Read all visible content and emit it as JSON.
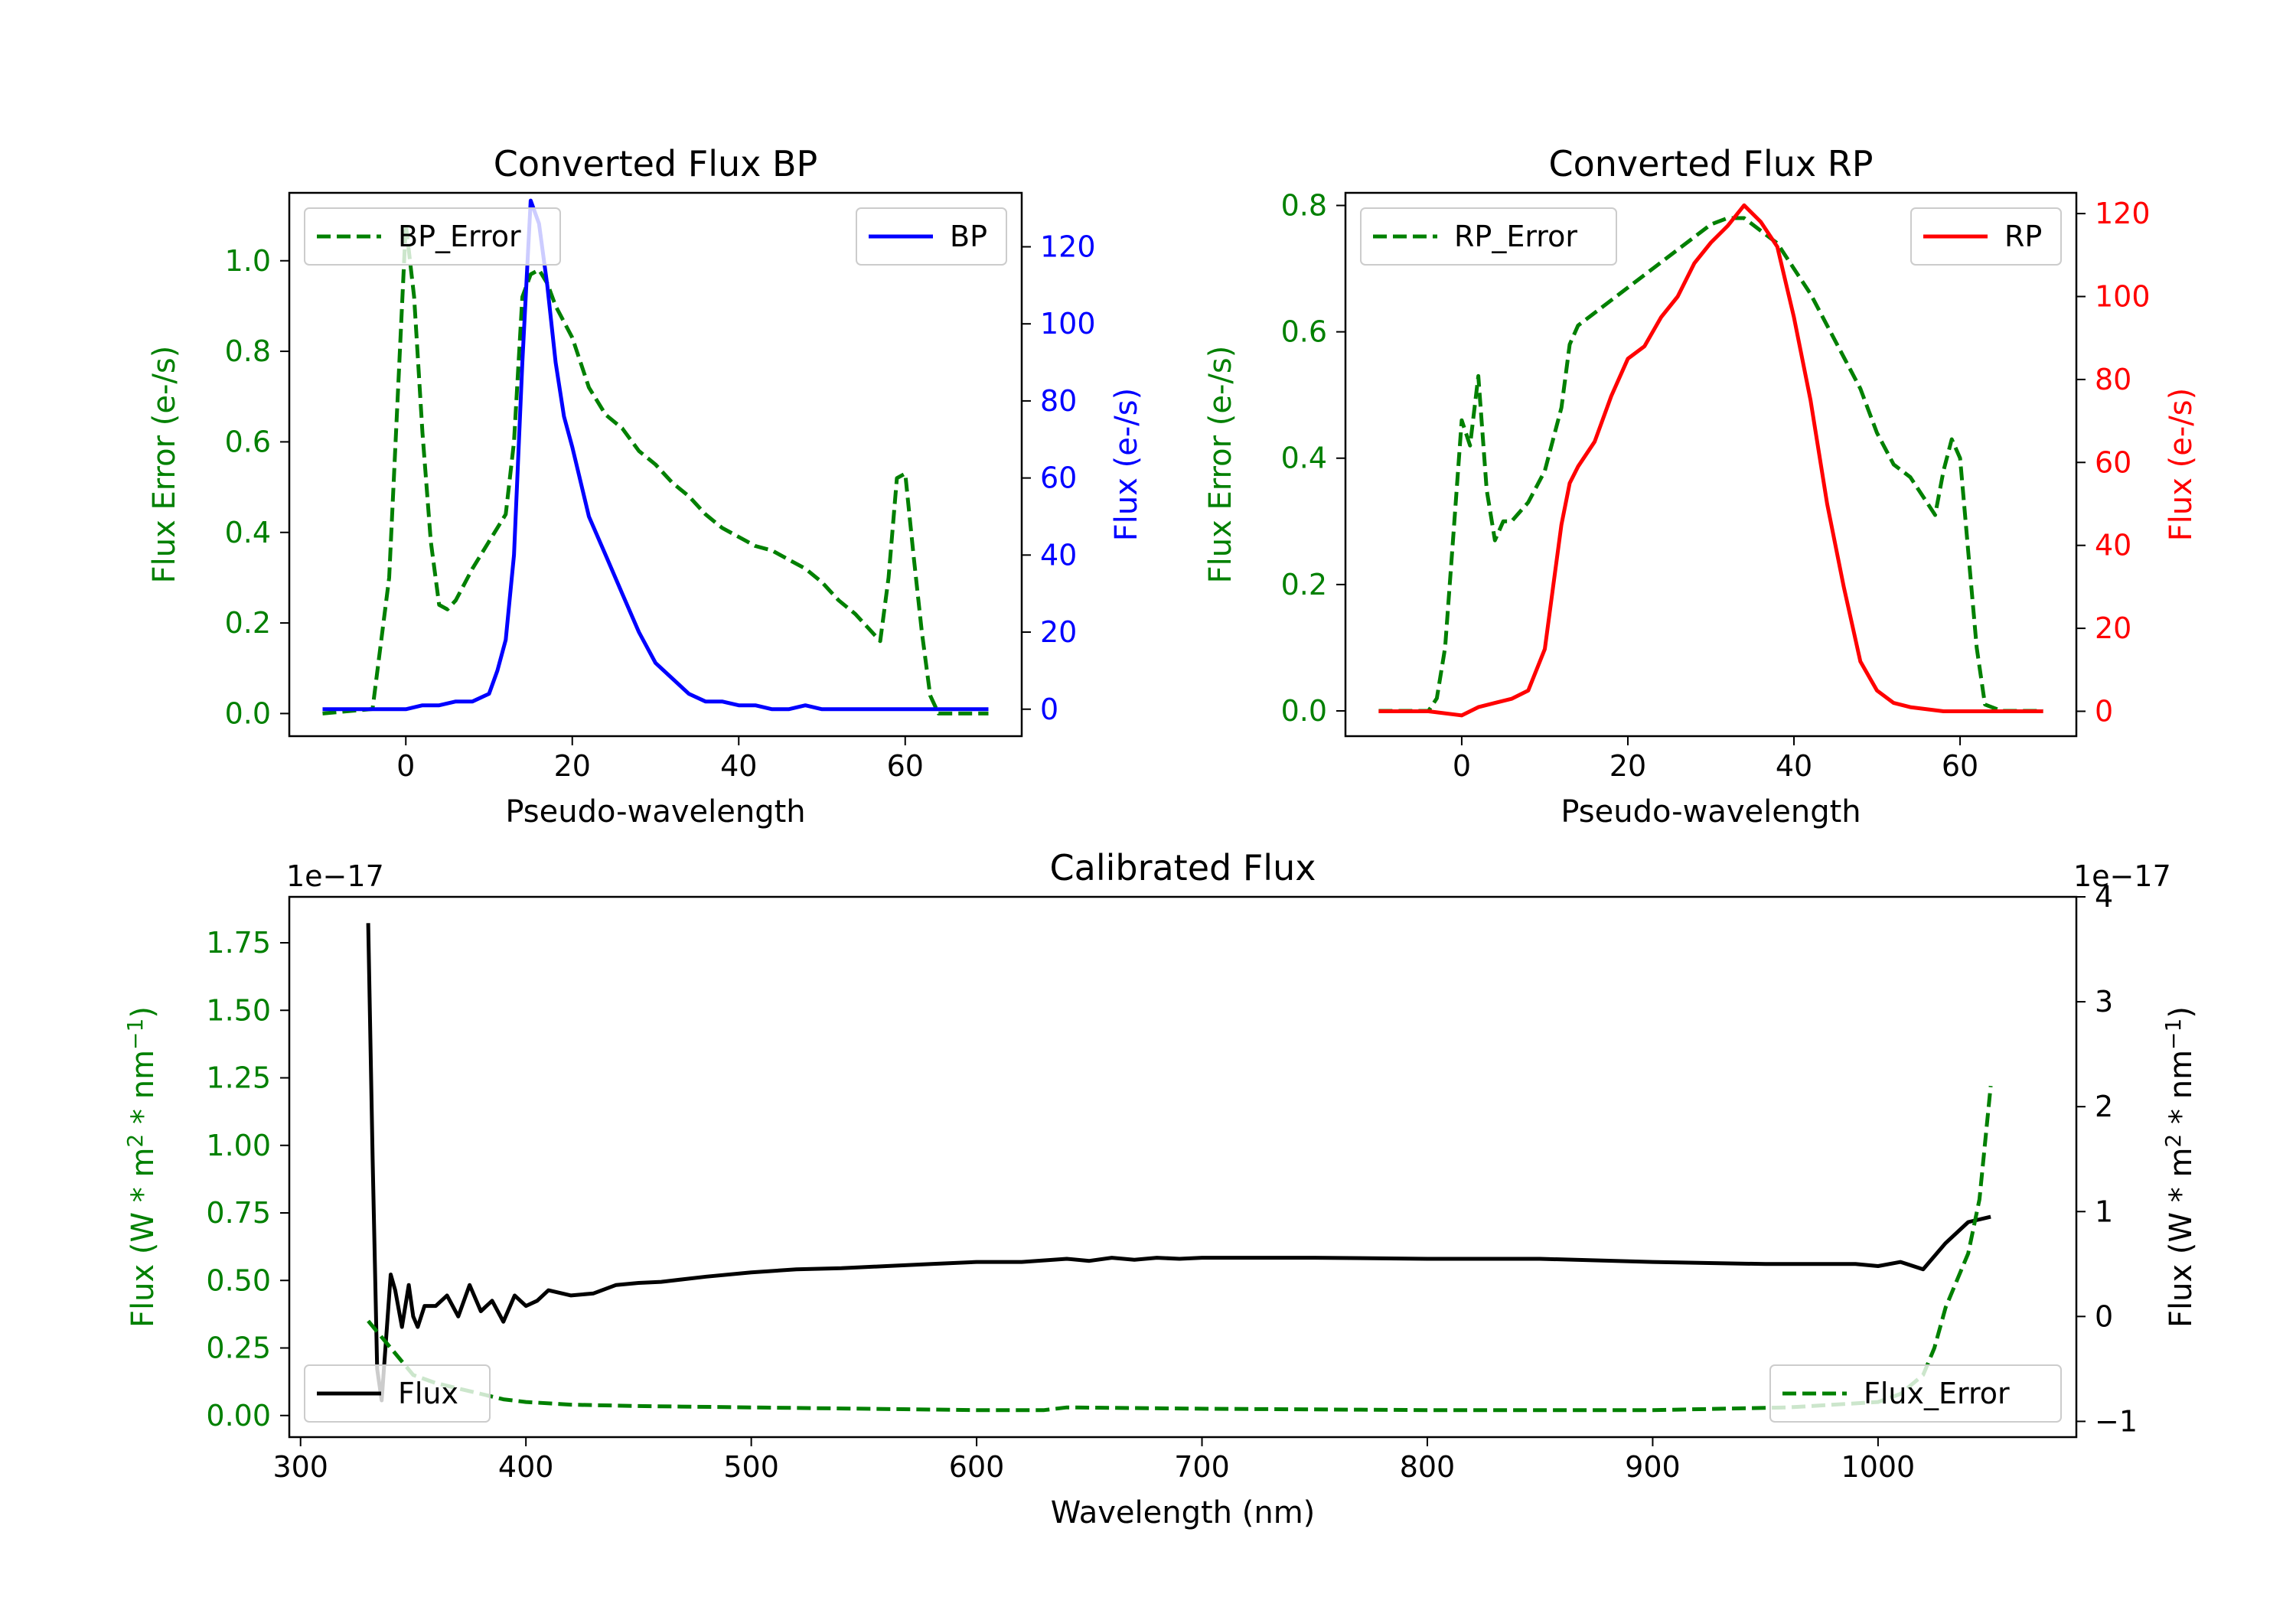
{
  "chart_data": [
    {
      "type": "line",
      "id": "bp",
      "title": "Converted Flux BP",
      "xlabel": "Pseudo-wavelength",
      "ylabel_left": "Flux Error (e-/s)",
      "ylabel_right": "Flux (e-/s)",
      "xlim": [
        -14,
        74
      ],
      "ylim_left": [
        -0.05,
        1.15
      ],
      "ylim_right": [
        -7,
        134
      ],
      "xticks": [
        0,
        20,
        40,
        60
      ],
      "yticks_left": [
        0.0,
        0.2,
        0.4,
        0.6,
        0.8,
        1.0
      ],
      "yticks_right": [
        0,
        20,
        40,
        60,
        80,
        100,
        120
      ],
      "legend": [
        {
          "label": "BP_Error",
          "position": "upper-left"
        },
        {
          "label": "BP",
          "position": "upper-right"
        }
      ],
      "series": [
        {
          "name": "BP_Error",
          "axis": "left",
          "color": "#008000",
          "dash": true,
          "x": [
            -10,
            -4,
            -2,
            0,
            1,
            2,
            3,
            4,
            5,
            6,
            8,
            10,
            12,
            13,
            14,
            15,
            16,
            17,
            18,
            20,
            22,
            24,
            26,
            28,
            30,
            32,
            34,
            36,
            38,
            40,
            42,
            44,
            46,
            48,
            50,
            52,
            54,
            56,
            57,
            58,
            59,
            60,
            61,
            62,
            63,
            64,
            66,
            70
          ],
          "y": [
            0.0,
            0.01,
            0.3,
            1.08,
            0.92,
            0.62,
            0.38,
            0.24,
            0.23,
            0.25,
            0.32,
            0.38,
            0.44,
            0.6,
            0.92,
            0.97,
            0.98,
            0.95,
            0.9,
            0.83,
            0.72,
            0.66,
            0.63,
            0.58,
            0.55,
            0.51,
            0.48,
            0.44,
            0.41,
            0.39,
            0.37,
            0.36,
            0.34,
            0.32,
            0.29,
            0.25,
            0.22,
            0.18,
            0.16,
            0.3,
            0.52,
            0.53,
            0.35,
            0.18,
            0.04,
            0.0,
            0.0,
            0.0
          ]
        },
        {
          "name": "BP",
          "axis": "right",
          "color": "#0000ff",
          "dash": false,
          "x": [
            -10,
            -4,
            0,
            2,
            4,
            6,
            8,
            10,
            11,
            12,
            13,
            14,
            15,
            16,
            17,
            18,
            19,
            20,
            22,
            24,
            26,
            28,
            30,
            32,
            34,
            36,
            38,
            40,
            42,
            44,
            46,
            48,
            50,
            52,
            54,
            58,
            62,
            66,
            70
          ],
          "y": [
            0,
            0,
            0,
            1,
            1,
            2,
            2,
            4,
            10,
            18,
            40,
            90,
            132,
            126,
            110,
            90,
            76,
            68,
            50,
            40,
            30,
            20,
            12,
            8,
            4,
            2,
            2,
            1,
            1,
            0,
            0,
            1,
            0,
            0,
            0,
            0,
            0,
            0,
            0
          ]
        }
      ]
    },
    {
      "type": "line",
      "id": "rp",
      "title": "Converted Flux RP",
      "xlabel": "Pseudo-wavelength",
      "ylabel_left": "Flux Error (e-/s)",
      "ylabel_right": "Flux (e-/s)",
      "xlim": [
        -14,
        74
      ],
      "ylim_left": [
        -0.04,
        0.82
      ],
      "ylim_right": [
        -6,
        125
      ],
      "xticks": [
        0,
        20,
        40,
        60
      ],
      "yticks_left": [
        0.0,
        0.2,
        0.4,
        0.6,
        0.8
      ],
      "yticks_right": [
        0,
        20,
        40,
        60,
        80,
        100,
        120
      ],
      "legend": [
        {
          "label": "RP_Error",
          "position": "upper-left"
        },
        {
          "label": "RP",
          "position": "upper-right"
        }
      ],
      "series": [
        {
          "name": "RP_Error",
          "axis": "left",
          "color": "#008000",
          "dash": true,
          "x": [
            -10,
            -4,
            -3,
            -2,
            -1,
            0,
            1,
            2,
            3,
            4,
            5,
            6,
            8,
            10,
            12,
            13,
            14,
            16,
            18,
            20,
            22,
            24,
            26,
            28,
            30,
            32,
            34,
            36,
            38,
            40,
            42,
            44,
            46,
            48,
            50,
            52,
            54,
            56,
            57,
            58,
            59,
            60,
            61,
            62,
            63,
            65,
            70
          ],
          "y": [
            0.0,
            0.0,
            0.02,
            0.1,
            0.28,
            0.46,
            0.42,
            0.53,
            0.35,
            0.27,
            0.3,
            0.3,
            0.33,
            0.38,
            0.48,
            0.58,
            0.61,
            0.63,
            0.65,
            0.67,
            0.69,
            0.71,
            0.73,
            0.75,
            0.77,
            0.78,
            0.78,
            0.76,
            0.74,
            0.7,
            0.66,
            0.61,
            0.56,
            0.51,
            0.44,
            0.39,
            0.37,
            0.33,
            0.31,
            0.38,
            0.43,
            0.4,
            0.25,
            0.1,
            0.01,
            0.0,
            0.0
          ]
        },
        {
          "name": "RP",
          "axis": "right",
          "color": "#ff0000",
          "dash": false,
          "x": [
            -10,
            -4,
            0,
            2,
            4,
            6,
            8,
            10,
            11,
            12,
            13,
            14,
            16,
            18,
            20,
            22,
            24,
            26,
            28,
            30,
            32,
            34,
            36,
            38,
            40,
            42,
            44,
            46,
            48,
            50,
            52,
            54,
            58,
            62,
            66,
            70
          ],
          "y": [
            0,
            0,
            -1,
            1,
            2,
            3,
            5,
            15,
            30,
            45,
            55,
            59,
            65,
            76,
            85,
            88,
            95,
            100,
            108,
            113,
            117,
            122,
            118,
            112,
            95,
            75,
            50,
            30,
            12,
            5,
            2,
            1,
            0,
            0,
            0,
            0
          ]
        }
      ]
    },
    {
      "type": "line",
      "id": "cal",
      "title": "Calibrated Flux",
      "xlabel": "Wavelength (nm)",
      "ylabel_left": "Flux (W * m^2 * nm^-1)",
      "ylabel_right": "Flux (W * m^2 * nm^-1)",
      "scale_left": "1e−17",
      "scale_right": "1e−17",
      "xlim": [
        295,
        1088
      ],
      "ylim_left": [
        -0.08,
        1.92
      ],
      "ylim_right": [
        -1.15,
        4.0
      ],
      "xticks": [
        300,
        400,
        500,
        600,
        700,
        800,
        900,
        1000
      ],
      "yticks_left": [
        0.0,
        0.25,
        0.5,
        0.75,
        1.0,
        1.25,
        1.5,
        1.75
      ],
      "yticks_right": [
        -1,
        0,
        1,
        2,
        3,
        4
      ],
      "legend": [
        {
          "label": "Flux",
          "position": "lower-left"
        },
        {
          "label": "Flux_Error",
          "position": "lower-right"
        }
      ],
      "series": [
        {
          "name": "Flux",
          "axis": "right",
          "color": "#000000",
          "dash": false,
          "x": [
            330,
            332,
            334,
            336,
            338,
            340,
            342,
            345,
            348,
            350,
            352,
            355,
            360,
            365,
            370,
            375,
            380,
            385,
            390,
            395,
            400,
            405,
            410,
            420,
            430,
            440,
            450,
            460,
            480,
            500,
            520,
            540,
            560,
            580,
            600,
            620,
            640,
            650,
            660,
            670,
            680,
            690,
            700,
            750,
            800,
            850,
            900,
            950,
            990,
            1000,
            1010,
            1020,
            1030,
            1040,
            1050
          ],
          "y": [
            3.75,
            1.5,
            -0.5,
            -0.8,
            -0.2,
            0.4,
            0.25,
            -0.1,
            0.3,
            0.0,
            -0.1,
            0.1,
            0.1,
            0.2,
            0.0,
            0.3,
            0.05,
            0.15,
            -0.05,
            0.2,
            0.1,
            0.15,
            0.25,
            0.2,
            0.22,
            0.3,
            0.32,
            0.33,
            0.38,
            0.42,
            0.45,
            0.46,
            0.48,
            0.5,
            0.52,
            0.52,
            0.55,
            0.53,
            0.56,
            0.54,
            0.56,
            0.55,
            0.56,
            0.56,
            0.55,
            0.55,
            0.52,
            0.5,
            0.5,
            0.48,
            0.52,
            0.45,
            0.7,
            0.9,
            0.95
          ]
        },
        {
          "name": "Flux_Error",
          "axis": "left",
          "color": "#008000",
          "dash": true,
          "x": [
            330,
            340,
            350,
            360,
            370,
            380,
            390,
            400,
            420,
            450,
            500,
            550,
            600,
            630,
            640,
            700,
            800,
            900,
            960,
            1000,
            1010,
            1020,
            1025,
            1030,
            1035,
            1040,
            1045,
            1050
          ],
          "y": [
            0.35,
            0.25,
            0.15,
            0.12,
            0.1,
            0.08,
            0.06,
            0.05,
            0.04,
            0.035,
            0.03,
            0.025,
            0.02,
            0.02,
            0.03,
            0.025,
            0.02,
            0.02,
            0.03,
            0.05,
            0.08,
            0.15,
            0.25,
            0.4,
            0.5,
            0.6,
            0.8,
            1.22
          ]
        }
      ]
    }
  ]
}
